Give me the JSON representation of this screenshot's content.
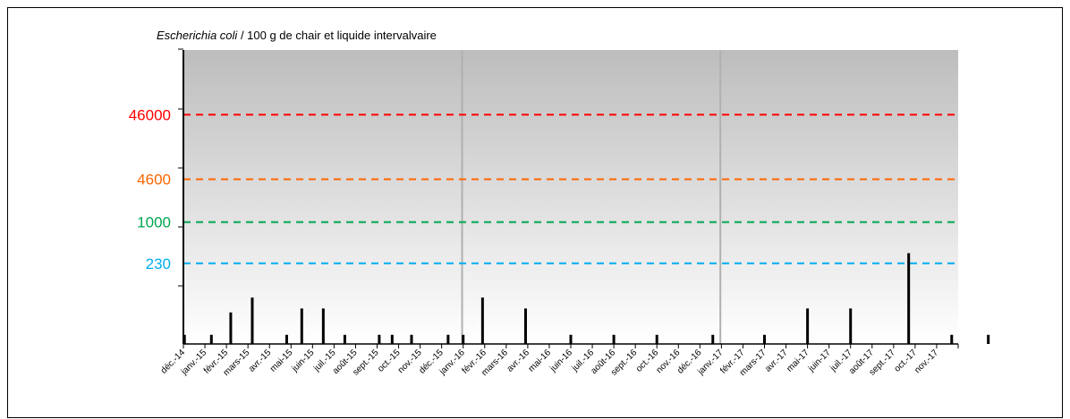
{
  "chart_data": {
    "type": "bar",
    "title_italic": "Escherichia coli",
    "title_rest": " / 100 g de chair et liquide intervalvaire",
    "xlabel": "",
    "ylabel": "",
    "y_scale": "log",
    "y_range": [
      13,
      460000
    ],
    "grid": false,
    "legend": "none",
    "month_labels": [
      "déc.-14",
      "janv.-15",
      "févr.-15",
      "mars-15",
      "avr.-15",
      "mai-15",
      "juin-15",
      "juil.-15",
      "août-15",
      "sept.-15",
      "oct.-15",
      "nov.-15",
      "déc.-15",
      "janv.-16",
      "févr.-16",
      "mars-16",
      "avr.-16",
      "mai-16",
      "juin-16",
      "juil.-16",
      "août-16",
      "sept.-16",
      "oct.-16",
      "nov.-16",
      "déc.-16",
      "janv.-17",
      "févr.-17",
      "mars-17",
      "avr.-17",
      "mai-17",
      "juin-17",
      "juil.-17",
      "août-17",
      "sept.-17",
      "oct.-17",
      "nov.-17"
    ],
    "thresholds": [
      {
        "value": 46000,
        "label": "46000",
        "color": "#ff0000"
      },
      {
        "value": 4600,
        "label": "4600",
        "color": "#ff6600"
      },
      {
        "value": 1000,
        "label": "1000",
        "color": "#00a651"
      },
      {
        "value": 230,
        "label": "230",
        "color": "#00aeef"
      }
    ],
    "period_separators_months": [
      12.95,
      24.95
    ],
    "points": [
      {
        "month": 0.05,
        "value": 18
      },
      {
        "month": 1.3,
        "value": 18
      },
      {
        "month": 2.2,
        "value": 40
      },
      {
        "month": 3.2,
        "value": 68
      },
      {
        "month": 4.8,
        "value": 18
      },
      {
        "month": 5.5,
        "value": 46
      },
      {
        "month": 6.5,
        "value": 46
      },
      {
        "month": 7.5,
        "value": 18
      },
      {
        "month": 9.1,
        "value": 18
      },
      {
        "month": 9.7,
        "value": 18
      },
      {
        "month": 10.6,
        "value": 18
      },
      {
        "month": 12.3,
        "value": 18
      },
      {
        "month": 13.0,
        "value": 18
      },
      {
        "month": 13.9,
        "value": 68
      },
      {
        "month": 15.9,
        "value": 46
      },
      {
        "month": 18.0,
        "value": 18
      },
      {
        "month": 20.0,
        "value": 18
      },
      {
        "month": 22.0,
        "value": 18
      },
      {
        "month": 24.6,
        "value": 18
      },
      {
        "month": 27.0,
        "value": 18
      },
      {
        "month": 29.0,
        "value": 46
      },
      {
        "month": 31.0,
        "value": 46
      },
      {
        "month": 33.7,
        "value": 330
      },
      {
        "month": 35.7,
        "value": 18
      },
      {
        "month": 37.4,
        "value": 18
      }
    ]
  }
}
